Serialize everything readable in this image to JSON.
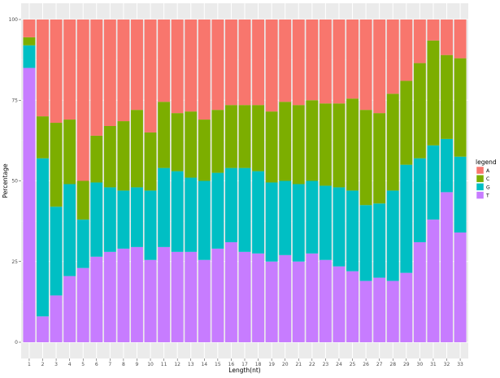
{
  "chart_data": {
    "type": "bar",
    "stacked": true,
    "title": "",
    "xlabel": "Length(nt)",
    "ylabel": "Percentage",
    "ylim": [
      0,
      100
    ],
    "yticks": [
      0,
      25,
      50,
      75,
      100
    ],
    "grid": true,
    "legend": {
      "title": "legend",
      "position": "right"
    },
    "categories": [
      "1",
      "2",
      "3",
      "4",
      "5",
      "6",
      "7",
      "8",
      "9",
      "10",
      "11",
      "12",
      "13",
      "14",
      "15",
      "16",
      "17",
      "18",
      "19",
      "20",
      "21",
      "22",
      "23",
      "24",
      "25",
      "26",
      "27",
      "28",
      "29",
      "30",
      "31",
      "32",
      "33"
    ],
    "series": [
      {
        "name": "A",
        "color": "#F8766D",
        "values": [
          5.5,
          30,
          32,
          31,
          50,
          36,
          33,
          31.5,
          28,
          35,
          25.5,
          29,
          28.5,
          31,
          28,
          26.5,
          26.5,
          26.5,
          28.5,
          25.5,
          26.5,
          25,
          26,
          26,
          24.5,
          28,
          29,
          23,
          19,
          13.5,
          6.5,
          11,
          12
        ]
      },
      {
        "name": "C",
        "color": "#7CAE00",
        "values": [
          2.5,
          13,
          26,
          20,
          12,
          14.5,
          19,
          21.5,
          24,
          18,
          20.5,
          18,
          20.5,
          19,
          19.5,
          19.5,
          19.5,
          20.5,
          22,
          24.5,
          24.5,
          25,
          25.5,
          26,
          28.5,
          29.5,
          28,
          30,
          26,
          29.5,
          32.5,
          26,
          30.5
        ]
      },
      {
        "name": "G",
        "color": "#00BFC4",
        "values": [
          7,
          49,
          27.5,
          28.5,
          15,
          23,
          20,
          18,
          18.5,
          21.5,
          24.5,
          25,
          23,
          24.5,
          23.5,
          23,
          26,
          25.5,
          24.5,
          23,
          24,
          22.5,
          23,
          24.5,
          25,
          23.5,
          23,
          28,
          33.5,
          26,
          23,
          16.5,
          23.5
        ]
      },
      {
        "name": "T",
        "color": "#C77CFF",
        "values": [
          85,
          8,
          14.5,
          20.5,
          23,
          26.5,
          28,
          29,
          29.5,
          25.5,
          29.5,
          28,
          28,
          25.5,
          29,
          31,
          28,
          27.5,
          25,
          27,
          25,
          27.5,
          25.5,
          23.5,
          22,
          19,
          20,
          19,
          21.5,
          31,
          38,
          46.5,
          34
        ]
      }
    ]
  }
}
